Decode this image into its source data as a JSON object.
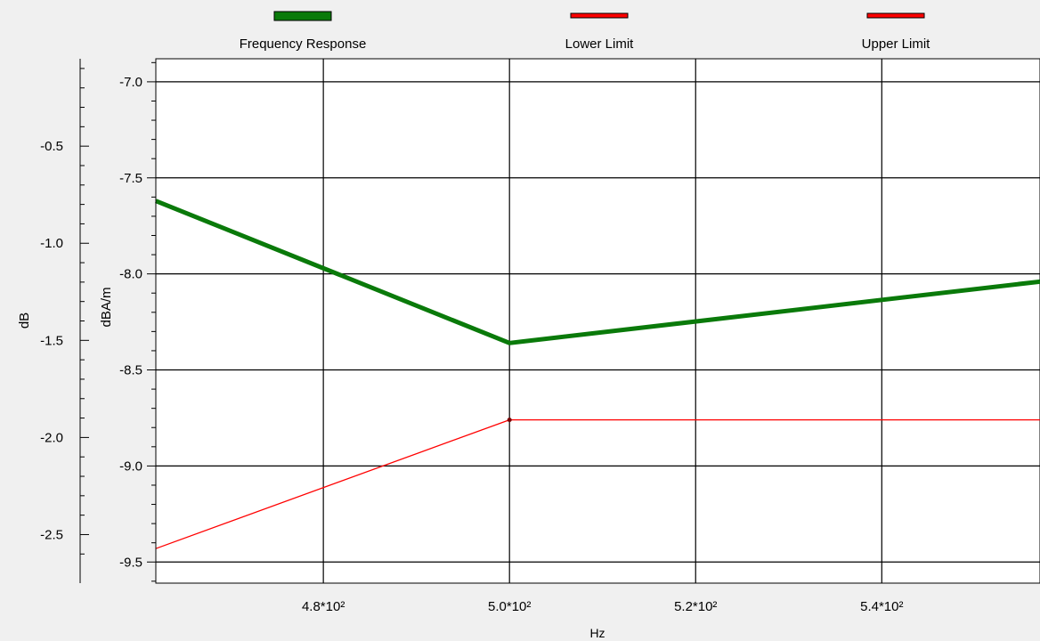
{
  "chart_data": {
    "type": "line",
    "xlabel": "Hz",
    "ylabel_outer": "dB",
    "ylabel_inner": "dBA/m",
    "xlim": [
      462,
      557
    ],
    "ylim_inner": [
      -6.88,
      -9.61
    ],
    "ylim_outer": [
      -0.05,
      -2.75
    ],
    "x_ticks": [
      {
        "value": 480,
        "label": "4.8*10²"
      },
      {
        "value": 500,
        "label": "5.0*10²"
      },
      {
        "value": 520,
        "label": "5.2*10²"
      },
      {
        "value": 540,
        "label": "5.4*10²"
      }
    ],
    "y_ticks_inner": [
      {
        "value": -7.0,
        "label": "-7.0"
      },
      {
        "value": -7.5,
        "label": "-7.5"
      },
      {
        "value": -8.0,
        "label": "-8.0"
      },
      {
        "value": -8.5,
        "label": "-8.5"
      },
      {
        "value": -9.0,
        "label": "-9.0"
      },
      {
        "value": -9.5,
        "label": "-9.5"
      }
    ],
    "y_ticks_outer": [
      {
        "value": -0.5,
        "label": "-0.5"
      },
      {
        "value": -1.0,
        "label": "-1.0"
      },
      {
        "value": -1.5,
        "label": "-1.5"
      },
      {
        "value": -2.0,
        "label": "-2.0"
      },
      {
        "value": -2.5,
        "label": "-2.5"
      }
    ],
    "grid": true,
    "legend_position": "top",
    "series": [
      {
        "name": "Frequency Response",
        "color": "#0a7a0a",
        "x": [
          462,
          500,
          557
        ],
        "y": [
          -7.62,
          -8.36,
          -8.04
        ]
      },
      {
        "name": "Lower Limit",
        "color": "#ff0000",
        "x": [
          462,
          500,
          557
        ],
        "y": [
          -9.43,
          -8.76,
          -8.76
        ]
      },
      {
        "name": "Upper Limit",
        "color": "#ff0000",
        "x": [],
        "y": []
      }
    ],
    "markers": [
      {
        "x": 500,
        "y": -8.76,
        "color": "#7a0000"
      }
    ]
  }
}
